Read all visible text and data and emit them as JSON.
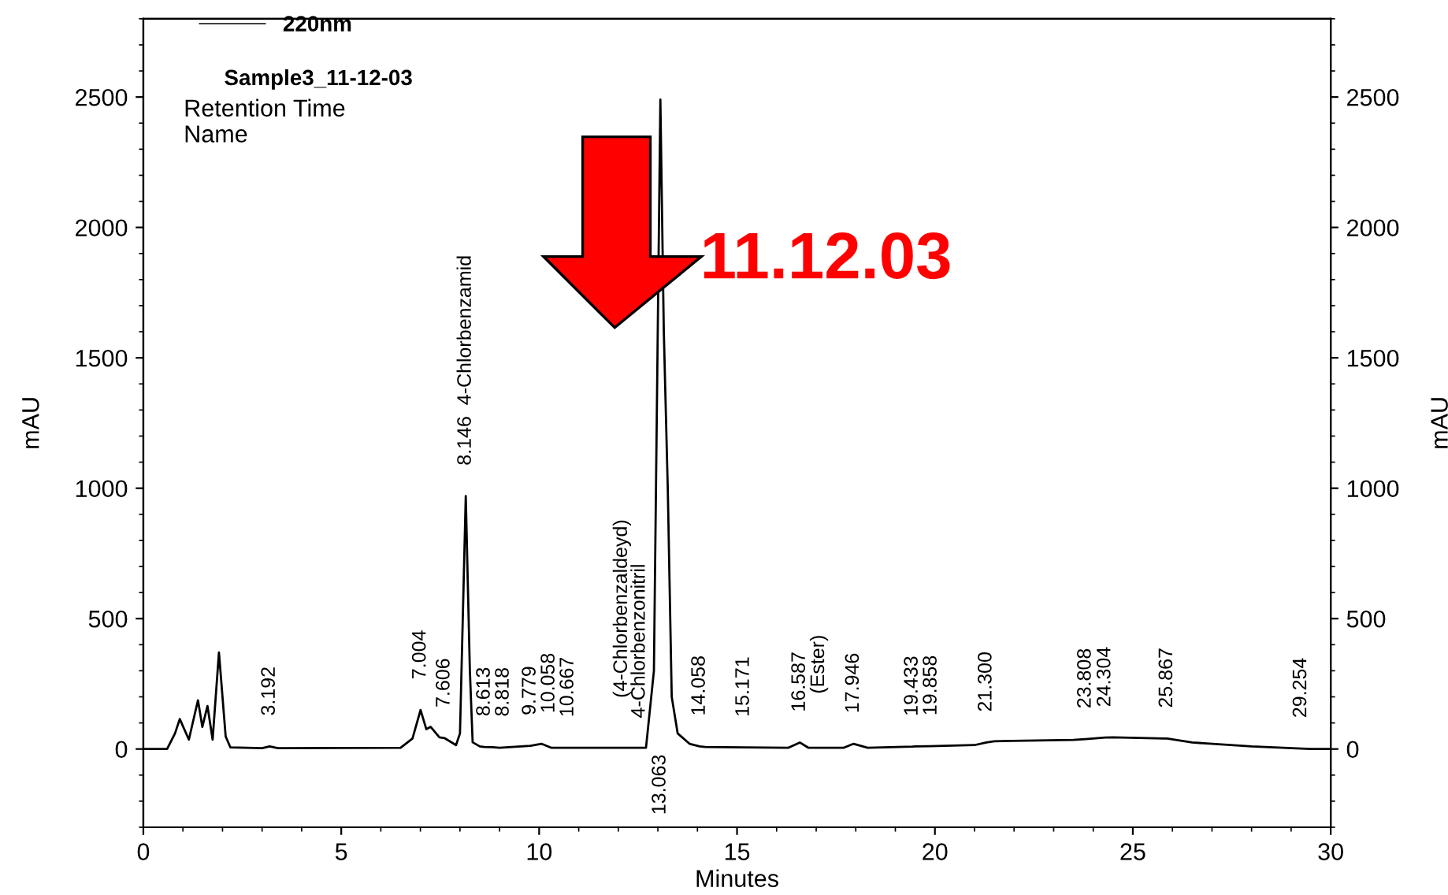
{
  "chart_data": {
    "type": "line",
    "xlabel": "Minutes",
    "ylabel": "mAU",
    "y2label": "mAU",
    "xlim": [
      0,
      30
    ],
    "xticks": [
      0,
      5,
      10,
      15,
      20,
      25,
      30
    ],
    "ylim": [
      -300,
      2800
    ],
    "yticks": [
      0,
      500,
      1000,
      1500,
      2000,
      2500
    ],
    "y2lim": [
      -300,
      2800
    ],
    "y2ticks": [
      0,
      500,
      1000,
      1500,
      2000,
      2500
    ],
    "grid": false,
    "legend": "top left",
    "marker": "none",
    "line_style": "solid",
    "series": [
      {
        "name": "220nm",
        "color": "#000000",
        "x": [
          0,
          0.6,
          0.8,
          0.92,
          1.15,
          1.38,
          1.49,
          1.62,
          1.75,
          1.91,
          2.08,
          2.2,
          3.0,
          3.192,
          3.4,
          6.5,
          6.8,
          7.004,
          7.15,
          7.26,
          7.48,
          7.606,
          7.9,
          8.0,
          8.146,
          8.25,
          8.32,
          8.5,
          8.613,
          8.818,
          9.0,
          9.779,
          10.058,
          10.3,
          10.667,
          12.7,
          12.9,
          13.063,
          13.15,
          13.25,
          13.35,
          13.5,
          13.8,
          14.058,
          14.2,
          15.171,
          16.3,
          16.587,
          16.8,
          17.7,
          17.946,
          18.3,
          19.433,
          19.5,
          19.858,
          21.0,
          21.3,
          21.5,
          23.5,
          23.808,
          24.304,
          24.5,
          25.8,
          25.867,
          26.5,
          28.0,
          29.254,
          29.5,
          30
        ],
        "values": [
          0,
          0,
          60,
          115,
          36,
          187,
          85,
          165,
          36,
          370,
          48,
          6,
          3,
          10,
          3,
          5,
          40,
          150,
          76,
          85,
          45,
          42,
          15,
          60,
          970,
          300,
          26,
          10,
          8,
          7,
          5,
          12,
          20,
          5,
          5,
          5,
          300,
          2490,
          1600,
          1000,
          200,
          60,
          20,
          10,
          8,
          6,
          5,
          25,
          5,
          5,
          20,
          5,
          9,
          10,
          11,
          15,
          25,
          30,
          35,
          38,
          44,
          45,
          40,
          40,
          25,
          10,
          2,
          0,
          0
        ]
      }
    ],
    "annotations": [
      "Sample3_11-12-03",
      "Retention Time",
      "Name",
      "11.12.03",
      "(4-Chlorbenzaldeyd)",
      "4-Chlorbenzonitril",
      "13.063",
      "(Ester)",
      {
        "text": "3.192",
        "x": 3.192,
        "y": 10
      },
      {
        "text": "7.004",
        "x": 7.004,
        "y": 150
      },
      {
        "text": "7.606",
        "x": 7.606,
        "y": 42
      },
      {
        "text": "8.146  4-Chlorbenzamid",
        "x": 8.146,
        "y": 970
      },
      {
        "text": "8.613",
        "x": 8.613,
        "y": 8
      },
      {
        "text": "8.818",
        "x": 8.818,
        "y": 7
      },
      {
        "text": "9.779",
        "x": 9.779,
        "y": 12
      },
      {
        "text": "10.058",
        "x": 10.058,
        "y": 20
      },
      {
        "text": "10.667",
        "x": 10.667,
        "y": 5
      },
      {
        "text": "14.058",
        "x": 14.058,
        "y": 10
      },
      {
        "text": "15.171",
        "x": 15.171,
        "y": 6
      },
      {
        "text": "16.587",
        "x": 16.587,
        "y": 25
      },
      {
        "text": "17.946",
        "x": 17.946,
        "y": 20
      },
      {
        "text": "19.433",
        "x": 19.433,
        "y": 9
      },
      {
        "text": "19.858",
        "x": 19.858,
        "y": 11
      },
      {
        "text": "21.300",
        "x": 21.3,
        "y": 25
      },
      {
        "text": "23.808",
        "x": 23.808,
        "y": 38
      },
      {
        "text": "24.304",
        "x": 24.304,
        "y": 44
      },
      {
        "text": "25.867",
        "x": 25.867,
        "y": 40
      },
      {
        "text": "29.254",
        "x": 29.254,
        "y": 2
      }
    ]
  }
}
